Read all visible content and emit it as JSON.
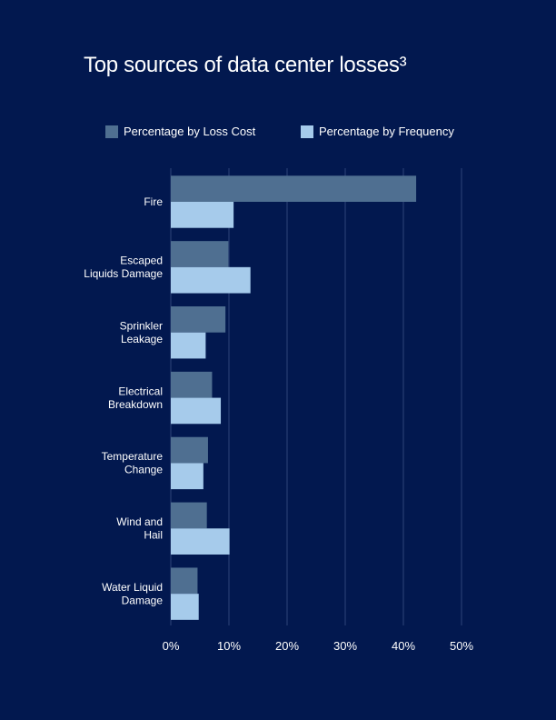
{
  "chart_data": {
    "type": "bar",
    "orientation": "horizontal",
    "title": "Top sources of data center losses³",
    "categories": [
      [
        "Fire"
      ],
      [
        "Escaped",
        "Liquids Damage"
      ],
      [
        "Sprinkler",
        "Leakage"
      ],
      [
        "Electrical",
        "Breakdown"
      ],
      [
        "Temperature",
        "Change"
      ],
      [
        "Wind and",
        "Hail"
      ],
      [
        "Water Liquid",
        "Damage"
      ]
    ],
    "series": [
      {
        "name": "Percentage by Loss Cost",
        "color": "#4f6f91",
        "values": [
          42.2,
          9.9,
          9.4,
          7.1,
          6.4,
          6.2,
          4.6
        ]
      },
      {
        "name": "Percentage by Frequency",
        "color": "#a6cbeb",
        "values": [
          10.8,
          13.7,
          6.0,
          8.6,
          5.6,
          10.1,
          4.8
        ]
      }
    ],
    "xlim": [
      0,
      50
    ],
    "xticks": [
      "0%",
      "10%",
      "20%",
      "30%",
      "40%",
      "50%"
    ],
    "grid": true,
    "legend_position": "top",
    "background": "#02184f",
    "gridline_color": "#2d4478"
  }
}
